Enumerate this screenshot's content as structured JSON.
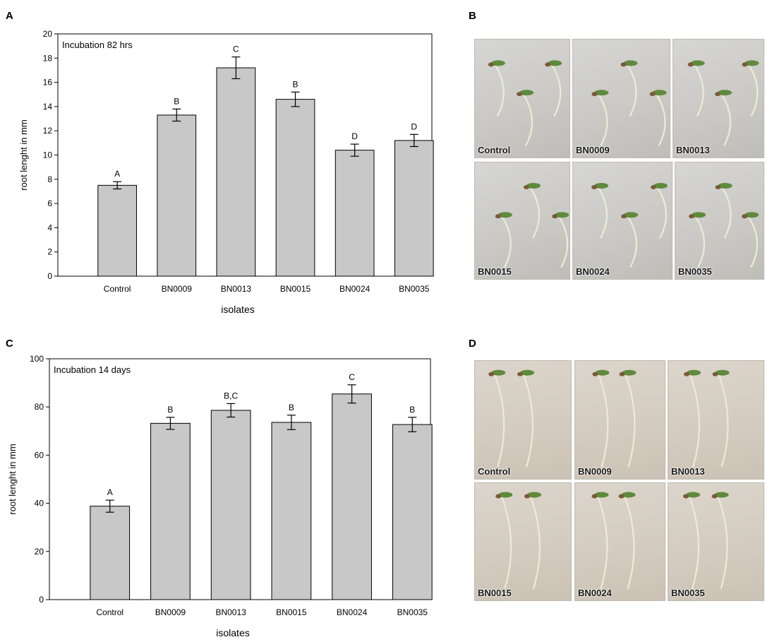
{
  "panels": {
    "A": "A",
    "B": "B",
    "C": "C",
    "D": "D"
  },
  "chart_data": [
    {
      "type": "bar",
      "panel": "A",
      "annotation": "Incubation 82 hrs",
      "xlabel": "isolates",
      "ylabel": "root lenght in mm",
      "categories": [
        "Control",
        "BN0009",
        "BN0013",
        "BN0015",
        "BN0024",
        "BN0035"
      ],
      "values": [
        7.5,
        13.3,
        17.2,
        14.6,
        10.4,
        11.2
      ],
      "errors": [
        0.3,
        0.5,
        0.9,
        0.6,
        0.5,
        0.5
      ],
      "letters": [
        "A",
        "B",
        "C",
        "B",
        "D",
        "D"
      ],
      "ylim": [
        0,
        20
      ],
      "yticks": [
        0,
        2,
        4,
        6,
        8,
        10,
        12,
        14,
        16,
        18,
        20
      ],
      "bar_color": "#c8c8c8"
    },
    {
      "type": "bar",
      "panel": "C",
      "annotation": "Incubation 14 days",
      "xlabel": "isolates",
      "ylabel": "root lenght in mm",
      "categories": [
        "Control",
        "BN0009",
        "BN0013",
        "BN0015",
        "BN0024",
        "BN0035"
      ],
      "values": [
        38.8,
        73.2,
        78.6,
        73.6,
        85.4,
        72.7
      ],
      "errors": [
        2.5,
        2.5,
        2.8,
        3.0,
        3.8,
        3.0
      ],
      "letters": [
        "A",
        "B",
        "B,C",
        "B",
        "C",
        "B"
      ],
      "ylim": [
        0,
        100
      ],
      "yticks": [
        0,
        20,
        40,
        60,
        80,
        100
      ],
      "bar_color": "#c8c8c8"
    }
  ],
  "photos_b": [
    "Control",
    "BN0009",
    "BN0013",
    "BN0015",
    "BN0024",
    "BN0035"
  ],
  "photos_d": [
    "Control",
    "BN0009",
    "BN0013",
    "BN0015",
    "BN0024",
    "BN0035"
  ]
}
